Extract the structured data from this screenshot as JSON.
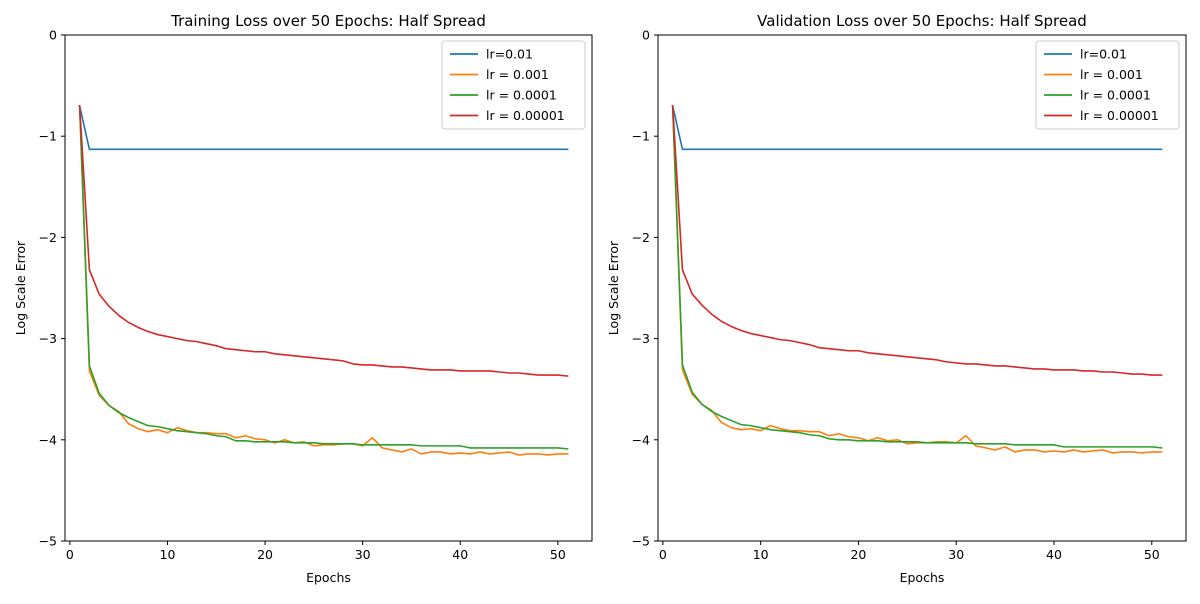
{
  "chart_data": [
    {
      "type": "line",
      "title": "Training Loss over 50 Epochs: Half Spread",
      "xlabel": "Epochs",
      "ylabel": "Log Scale Error",
      "xlim": [
        -0.5,
        53.5
      ],
      "ylim": [
        -5,
        0
      ],
      "xticks": [
        0,
        10,
        20,
        30,
        40,
        50
      ],
      "yticks": [
        0,
        -1,
        -2,
        -3,
        -4,
        -5
      ],
      "legend_position": "top-right",
      "x_start": 1,
      "series": [
        {
          "name": "lr=0.01",
          "color": "#1f77b4",
          "values": [
            -0.7,
            -1.13,
            -1.13,
            -1.13,
            -1.13,
            -1.13,
            -1.13,
            -1.13,
            -1.13,
            -1.13,
            -1.13,
            -1.13,
            -1.13,
            -1.13,
            -1.13,
            -1.13,
            -1.13,
            -1.13,
            -1.13,
            -1.13,
            -1.13,
            -1.13,
            -1.13,
            -1.13,
            -1.13,
            -1.13,
            -1.13,
            -1.13,
            -1.13,
            -1.13,
            -1.13,
            -1.13,
            -1.13,
            -1.13,
            -1.13,
            -1.13,
            -1.13,
            -1.13,
            -1.13,
            -1.13,
            -1.13,
            -1.13,
            -1.13,
            -1.13,
            -1.13,
            -1.13,
            -1.13,
            -1.13,
            -1.13,
            -1.13,
            -1.13
          ]
        },
        {
          "name": "lr = 0.001",
          "color": "#ff7f0e",
          "values": [
            -0.7,
            -3.32,
            -3.56,
            -3.66,
            -3.72,
            -3.84,
            -3.89,
            -3.92,
            -3.9,
            -3.93,
            -3.88,
            -3.91,
            -3.93,
            -3.93,
            -3.94,
            -3.94,
            -3.98,
            -3.96,
            -3.99,
            -4.0,
            -4.03,
            -4.0,
            -4.03,
            -4.02,
            -4.06,
            -4.05,
            -4.05,
            -4.04,
            -4.04,
            -4.06,
            -3.98,
            -4.08,
            -4.1,
            -4.12,
            -4.09,
            -4.14,
            -4.12,
            -4.12,
            -4.14,
            -4.13,
            -4.14,
            -4.12,
            -4.14,
            -4.13,
            -4.12,
            -4.15,
            -4.14,
            -4.14,
            -4.15,
            -4.14,
            -4.14
          ]
        },
        {
          "name": "lr = 0.0001",
          "color": "#2ca02c",
          "values": [
            -0.7,
            -3.27,
            -3.54,
            -3.66,
            -3.73,
            -3.78,
            -3.82,
            -3.86,
            -3.87,
            -3.89,
            -3.91,
            -3.92,
            -3.93,
            -3.94,
            -3.96,
            -3.97,
            -4.01,
            -4.01,
            -4.02,
            -4.02,
            -4.02,
            -4.02,
            -4.03,
            -4.03,
            -4.03,
            -4.04,
            -4.04,
            -4.04,
            -4.04,
            -4.05,
            -4.05,
            -4.05,
            -4.05,
            -4.05,
            -4.05,
            -4.06,
            -4.06,
            -4.06,
            -4.06,
            -4.06,
            -4.08,
            -4.08,
            -4.08,
            -4.08,
            -4.08,
            -4.08,
            -4.08,
            -4.08,
            -4.08,
            -4.08,
            -4.09
          ]
        },
        {
          "name": "lr = 0.00001",
          "color": "#d62728",
          "values": [
            -0.7,
            -2.32,
            -2.56,
            -2.68,
            -2.77,
            -2.84,
            -2.89,
            -2.93,
            -2.96,
            -2.98,
            -3.0,
            -3.02,
            -3.03,
            -3.05,
            -3.07,
            -3.1,
            -3.11,
            -3.12,
            -3.13,
            -3.13,
            -3.15,
            -3.16,
            -3.17,
            -3.18,
            -3.19,
            -3.2,
            -3.21,
            -3.22,
            -3.25,
            -3.26,
            -3.26,
            -3.27,
            -3.28,
            -3.28,
            -3.29,
            -3.3,
            -3.31,
            -3.31,
            -3.31,
            -3.32,
            -3.32,
            -3.32,
            -3.32,
            -3.33,
            -3.34,
            -3.34,
            -3.35,
            -3.36,
            -3.36,
            -3.36,
            -3.37
          ]
        }
      ]
    },
    {
      "type": "line",
      "title": "Validation Loss over 50 Epochs: Half Spread",
      "xlabel": "Epochs",
      "ylabel": "Log Scale Error",
      "xlim": [
        -0.5,
        53.5
      ],
      "ylim": [
        -5,
        0
      ],
      "xticks": [
        0,
        10,
        20,
        30,
        40,
        50
      ],
      "yticks": [
        0,
        -1,
        -2,
        -3,
        -4,
        -5
      ],
      "legend_position": "top-right",
      "x_start": 1,
      "series": [
        {
          "name": "lr=0.01",
          "color": "#1f77b4",
          "values": [
            -0.7,
            -1.13,
            -1.13,
            -1.13,
            -1.13,
            -1.13,
            -1.13,
            -1.13,
            -1.13,
            -1.13,
            -1.13,
            -1.13,
            -1.13,
            -1.13,
            -1.13,
            -1.13,
            -1.13,
            -1.13,
            -1.13,
            -1.13,
            -1.13,
            -1.13,
            -1.13,
            -1.13,
            -1.13,
            -1.13,
            -1.13,
            -1.13,
            -1.13,
            -1.13,
            -1.13,
            -1.13,
            -1.13,
            -1.13,
            -1.13,
            -1.13,
            -1.13,
            -1.13,
            -1.13,
            -1.13,
            -1.13,
            -1.13,
            -1.13,
            -1.13,
            -1.13,
            -1.13,
            -1.13,
            -1.13,
            -1.13,
            -1.13,
            -1.13
          ]
        },
        {
          "name": "lr = 0.001",
          "color": "#ff7f0e",
          "values": [
            -0.7,
            -3.31,
            -3.55,
            -3.65,
            -3.71,
            -3.83,
            -3.88,
            -3.9,
            -3.89,
            -3.91,
            -3.86,
            -3.89,
            -3.91,
            -3.91,
            -3.92,
            -3.92,
            -3.96,
            -3.94,
            -3.97,
            -3.98,
            -4.01,
            -3.98,
            -4.01,
            -4.0,
            -4.04,
            -4.03,
            -4.03,
            -4.02,
            -4.02,
            -4.03,
            -3.96,
            -4.06,
            -4.08,
            -4.1,
            -4.07,
            -4.12,
            -4.1,
            -4.1,
            -4.12,
            -4.11,
            -4.12,
            -4.1,
            -4.12,
            -4.11,
            -4.1,
            -4.13,
            -4.12,
            -4.12,
            -4.13,
            -4.12,
            -4.12
          ]
        },
        {
          "name": "lr = 0.0001",
          "color": "#2ca02c",
          "values": [
            -0.7,
            -3.26,
            -3.53,
            -3.65,
            -3.72,
            -3.77,
            -3.81,
            -3.85,
            -3.86,
            -3.88,
            -3.9,
            -3.91,
            -3.92,
            -3.93,
            -3.95,
            -3.96,
            -3.99,
            -4.0,
            -4.0,
            -4.01,
            -4.01,
            -4.01,
            -4.02,
            -4.02,
            -4.02,
            -4.02,
            -4.03,
            -4.03,
            -4.03,
            -4.03,
            -4.03,
            -4.04,
            -4.04,
            -4.04,
            -4.04,
            -4.05,
            -4.05,
            -4.05,
            -4.05,
            -4.05,
            -4.07,
            -4.07,
            -4.07,
            -4.07,
            -4.07,
            -4.07,
            -4.07,
            -4.07,
            -4.07,
            -4.07,
            -4.08
          ]
        },
        {
          "name": "lr = 0.00001",
          "color": "#d62728",
          "values": [
            -0.7,
            -2.32,
            -2.56,
            -2.67,
            -2.76,
            -2.83,
            -2.88,
            -2.92,
            -2.95,
            -2.97,
            -2.99,
            -3.01,
            -3.02,
            -3.04,
            -3.06,
            -3.09,
            -3.1,
            -3.11,
            -3.12,
            -3.12,
            -3.14,
            -3.15,
            -3.16,
            -3.17,
            -3.18,
            -3.19,
            -3.2,
            -3.21,
            -3.23,
            -3.24,
            -3.25,
            -3.25,
            -3.26,
            -3.27,
            -3.27,
            -3.28,
            -3.29,
            -3.3,
            -3.3,
            -3.31,
            -3.31,
            -3.31,
            -3.32,
            -3.32,
            -3.33,
            -3.33,
            -3.34,
            -3.35,
            -3.35,
            -3.36,
            -3.36
          ]
        }
      ]
    }
  ]
}
